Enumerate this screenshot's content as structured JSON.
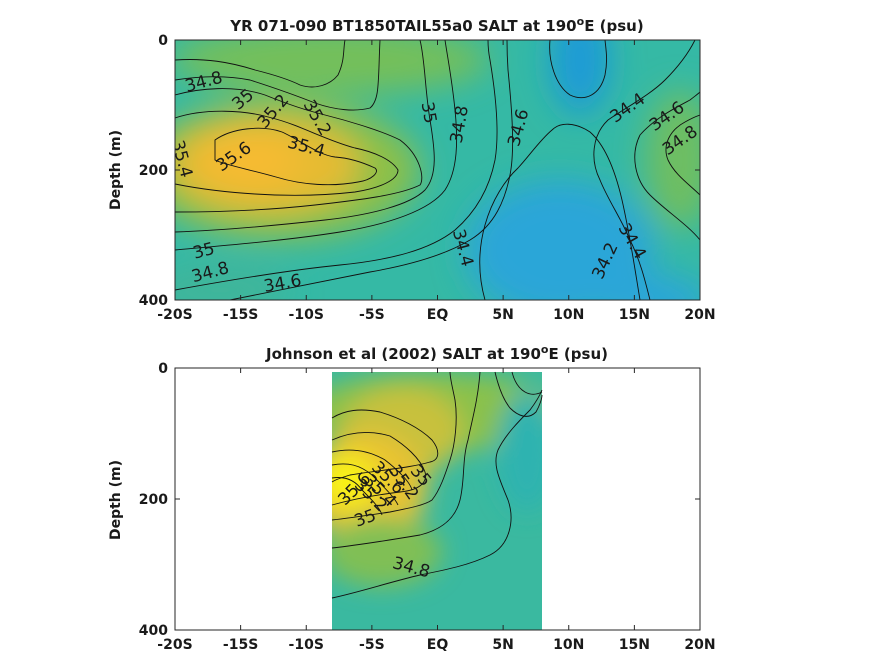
{
  "chart_data": [
    {
      "type": "heatmap",
      "title_main": "YR 071-090 BT1850TAIL55a0 SALT at 190",
      "title_sup": "o",
      "title_tail": "E (psu)",
      "ylabel": "Depth (m)",
      "xlabel": "",
      "xlim": [
        -20,
        20
      ],
      "ylim": [
        400,
        0
      ],
      "x_ticks": [
        -20,
        -15,
        -10,
        -5,
        0,
        5,
        10,
        15,
        20
      ],
      "x_tick_labels": [
        "-20S",
        "-15S",
        "-10S",
        "-5S",
        "EQ",
        "5N",
        "10N",
        "15N",
        "20N"
      ],
      "y_ticks": [
        0,
        200,
        400
      ],
      "y_tick_labels": [
        "0",
        "200",
        "400"
      ],
      "colormap": "parula",
      "color_range": [
        34.0,
        35.8
      ],
      "grid": false,
      "data_extent": [
        -20,
        20
      ],
      "contour_labels": [
        {
          "text": "34.8",
          "x": -17.8,
          "y": 65,
          "rot": -15
        },
        {
          "text": "35",
          "x": -14.8,
          "y": 92,
          "rot": -40
        },
        {
          "text": "35.2",
          "x": -12.5,
          "y": 110,
          "rot": -50
        },
        {
          "text": "35.2",
          "x": -9.2,
          "y": 120,
          "rot": 60
        },
        {
          "text": "35.4",
          "x": -19.5,
          "y": 183,
          "rot": 75
        },
        {
          "text": "35.6",
          "x": -15.5,
          "y": 180,
          "rot": -35
        },
        {
          "text": "35.4",
          "x": -10,
          "y": 165,
          "rot": 15
        },
        {
          "text": "35",
          "x": -0.7,
          "y": 112,
          "rot": 80
        },
        {
          "text": "34.8",
          "x": 1.7,
          "y": 130,
          "rot": -80
        },
        {
          "text": "34.6",
          "x": 6.2,
          "y": 135,
          "rot": -75
        },
        {
          "text": "34.4",
          "x": 14.5,
          "y": 105,
          "rot": -35
        },
        {
          "text": "34.6",
          "x": 17.5,
          "y": 118,
          "rot": -35
        },
        {
          "text": "34.8",
          "x": 18.5,
          "y": 155,
          "rot": -35
        },
        {
          "text": "35",
          "x": -17.8,
          "y": 325,
          "rot": -15
        },
        {
          "text": "34.8",
          "x": -17.3,
          "y": 358,
          "rot": -15
        },
        {
          "text": "34.6",
          "x": -11.8,
          "y": 375,
          "rot": -10
        },
        {
          "text": "34.4",
          "x": 1.9,
          "y": 320,
          "rot": 75
        },
        {
          "text": "34.2",
          "x": 12.8,
          "y": 340,
          "rot": -65
        },
        {
          "text": "34.4",
          "x": 14.8,
          "y": 310,
          "rot": 60
        }
      ]
    },
    {
      "type": "heatmap",
      "title_main": "Johnson et al (2002) SALT at 190",
      "title_sup": "o",
      "title_tail": "E (psu)",
      "ylabel": "Depth (m)",
      "xlabel": "",
      "xlim": [
        -20,
        20
      ],
      "ylim": [
        400,
        0
      ],
      "x_ticks": [
        -20,
        -15,
        -10,
        -5,
        0,
        5,
        10,
        15,
        20
      ],
      "x_tick_labels": [
        "-20S",
        "-15S",
        "-10S",
        "-5S",
        "EQ",
        "5N",
        "10N",
        "15N",
        "20N"
      ],
      "y_ticks": [
        0,
        200,
        400
      ],
      "y_tick_labels": [
        "0",
        "200",
        "400"
      ],
      "colormap": "parula",
      "color_range": [
        34.0,
        35.8
      ],
      "grid": false,
      "data_extent": [
        -8,
        8
      ],
      "contour_labels": [
        {
          "text": "34.8",
          "x": -2,
          "y": 305,
          "rot": 15
        },
        {
          "text": "35",
          "x": -5.5,
          "y": 230,
          "rot": -20
        },
        {
          "text": "35",
          "x": -1.3,
          "y": 165,
          "rot": 50
        },
        {
          "text": "35.2",
          "x": -5.1,
          "y": 195,
          "rot": 45
        },
        {
          "text": "35.2",
          "x": -2.6,
          "y": 175,
          "rot": 55
        },
        {
          "text": "35.4",
          "x": -4.4,
          "y": 188,
          "rot": 45
        },
        {
          "text": "35.6",
          "x": -6.3,
          "y": 185,
          "rot": -45
        },
        {
          "text": "35.6",
          "x": -3.8,
          "y": 168,
          "rot": 45
        }
      ]
    }
  ]
}
